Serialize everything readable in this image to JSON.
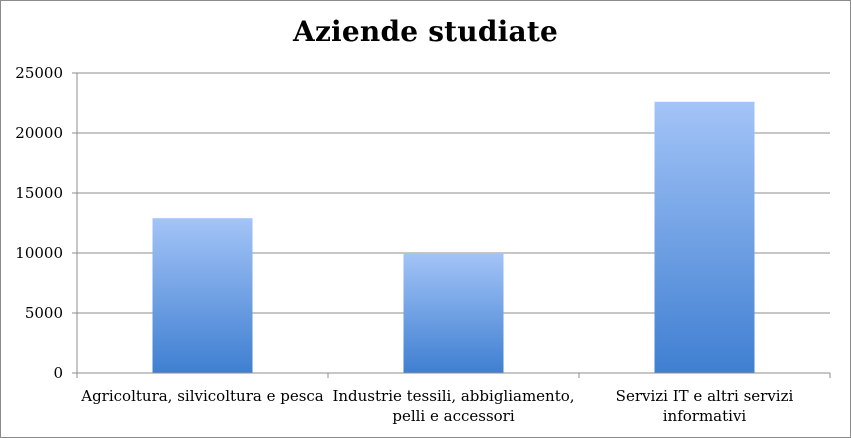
{
  "chart_data": {
    "type": "bar",
    "title": "Aziende studiate",
    "categories": [
      "Agricoltura, silvicoltura e pesca",
      "Industrie tessili, abbigliamento, pelli e accessori",
      "Servizi IT e altri servizi informativi"
    ],
    "category_label_lines": [
      [
        "Agricoltura, silvicoltura e pesca"
      ],
      [
        "Industrie tessili, abbigliamento,",
        "pelli e accessori"
      ],
      [
        "Servizi IT e altri servizi",
        "informativi"
      ]
    ],
    "values": [
      12900,
      10000,
      22600
    ],
    "xlabel": "",
    "ylabel": "",
    "ylim": [
      0,
      25000
    ],
    "yticks": [
      "0",
      "5000",
      "10000",
      "15000",
      "20000",
      "25000"
    ],
    "grid": true,
    "legend": "none",
    "colors": {
      "bar_top": "#a3c4f7",
      "bar_bottom": "#3f7fd1",
      "gridline": "#8c8c8c",
      "axis": "#8c8c8c"
    }
  }
}
